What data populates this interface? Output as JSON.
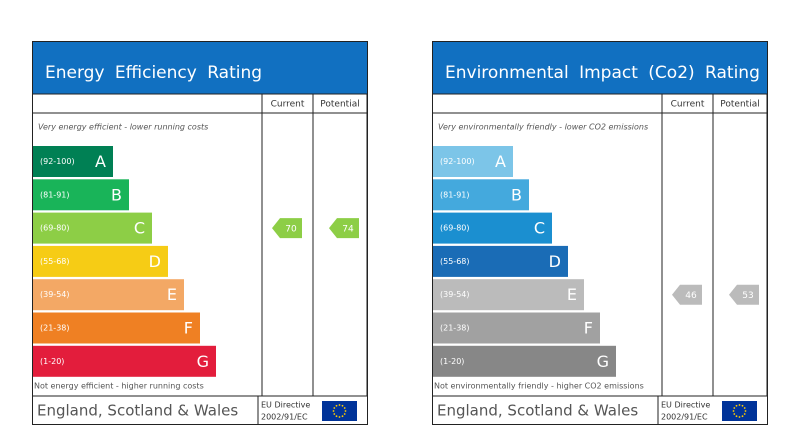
{
  "panels": [
    {
      "title": "Energy Efficiency Rating",
      "columns": [
        "Current",
        "Potential"
      ],
      "top_note": "Very energy efficient - lower running costs",
      "bands": [
        {
          "range": "(92-100)",
          "letter": "A",
          "color": "#008054"
        },
        {
          "range": "(81-91)",
          "letter": "B",
          "color": "#19b459"
        },
        {
          "range": "(69-80)",
          "letter": "C",
          "color": "#8dce46"
        },
        {
          "range": "(55-68)",
          "letter": "D",
          "color": "#f6cc15"
        },
        {
          "range": "(39-54)",
          "letter": "E",
          "color": "#f3a865"
        },
        {
          "range": "(21-38)",
          "letter": "F",
          "color": "#ef8023"
        },
        {
          "range": "(1-20)",
          "letter": "G",
          "color": "#e31d3c"
        }
      ],
      "bottom_note": "Not energy efficient - higher running costs",
      "current": 70,
      "potential": 74,
      "region": "England, Scotland & Wales",
      "directive": [
        "EU Directive",
        "2002/91/EC"
      ]
    },
    {
      "title": "Environmental Impact (Co2) Rating",
      "columns": [
        "Current",
        "Potential"
      ],
      "top_note": "Very environmentally friendly - lower CO2 emissions",
      "bands": [
        {
          "range": "(92-100)",
          "letter": "A",
          "color": "#7cc5e8"
        },
        {
          "range": "(81-91)",
          "letter": "B",
          "color": "#44a9dd"
        },
        {
          "range": "(69-80)",
          "letter": "C",
          "color": "#1b8fd0"
        },
        {
          "range": "(55-68)",
          "letter": "D",
          "color": "#1a6cb6"
        },
        {
          "range": "(39-54)",
          "letter": "E",
          "color": "#bbbbbb"
        },
        {
          "range": "(21-38)",
          "letter": "F",
          "color": "#a1a1a1"
        },
        {
          "range": "(1-20)",
          "letter": "G",
          "color": "#878787"
        }
      ],
      "bottom_note": "Not environmentally friendly - higher CO2 emissions",
      "current": 46,
      "potential": 53,
      "region": "England, Scotland & Wales",
      "directive": [
        "EU Directive",
        "2002/91/EC"
      ]
    }
  ]
}
